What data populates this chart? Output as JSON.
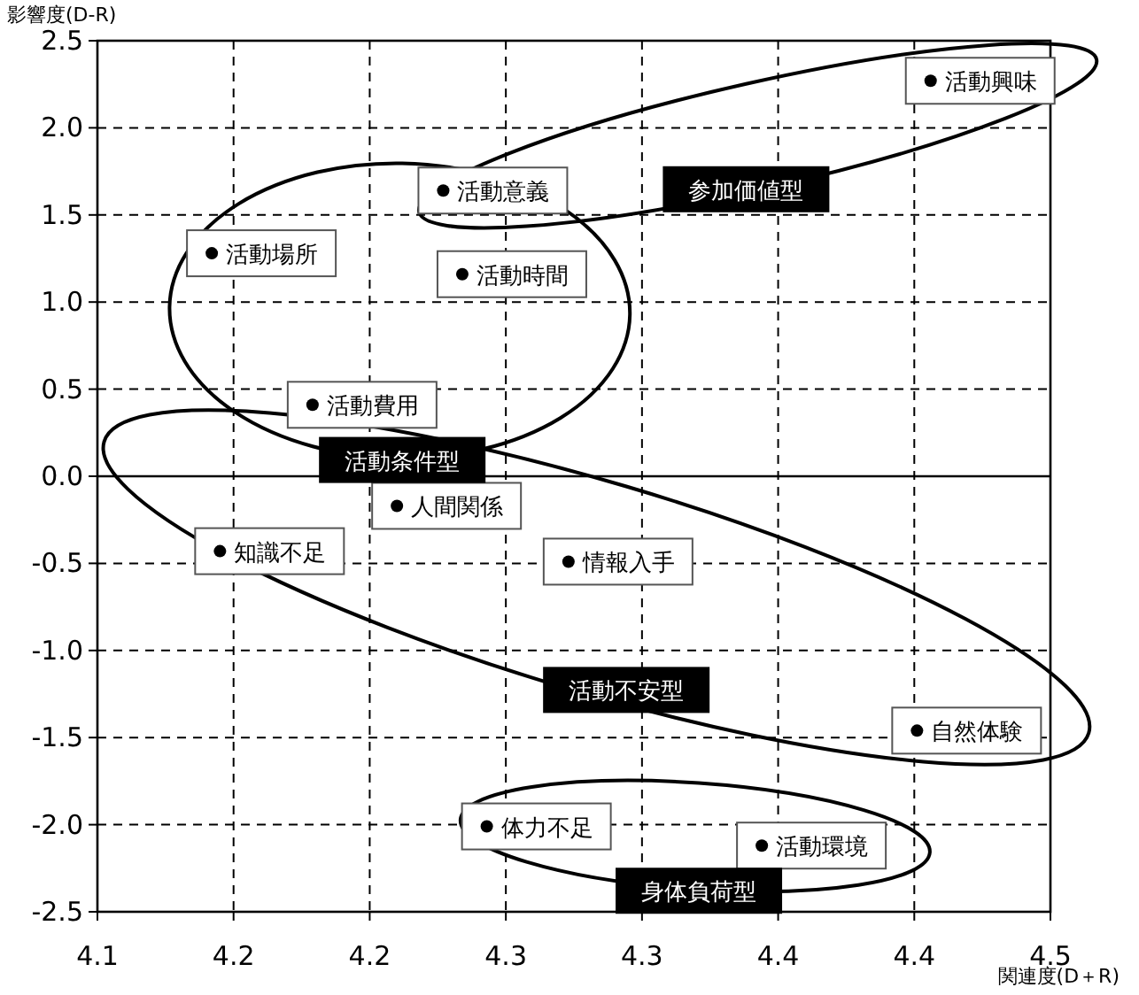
{
  "chart_data": {
    "type": "scatter",
    "xlabel": "関連度(D＋R)",
    "ylabel": "影響度(D-R)",
    "xlim": [
      4.1,
      4.45
    ],
    "ylim": [
      -2.5,
      2.5
    ],
    "xticks": [
      {
        "value": 4.1,
        "label": "4.1"
      },
      {
        "value": 4.15,
        "label": "4.2"
      },
      {
        "value": 4.2,
        "label": "4.2"
      },
      {
        "value": 4.25,
        "label": "4.3"
      },
      {
        "value": 4.3,
        "label": "4.3"
      },
      {
        "value": 4.35,
        "label": "4.4"
      },
      {
        "value": 4.4,
        "label": "4.4"
      },
      {
        "value": 4.45,
        "label": "4.5"
      }
    ],
    "yticks": [
      {
        "value": 2.5,
        "label": "2.5"
      },
      {
        "value": 2,
        "label": "2.0"
      },
      {
        "value": 1.5,
        "label": "1.5"
      },
      {
        "value": 1,
        "label": "1.0"
      },
      {
        "value": 0.5,
        "label": "0.5"
      },
      {
        "value": 0,
        "label": "0.0"
      },
      {
        "value": -0.5,
        "label": "-0.5"
      },
      {
        "value": -1,
        "label": "-1.0"
      },
      {
        "value": -1.5,
        "label": "-1.5"
      },
      {
        "value": -2,
        "label": "-2.0"
      },
      {
        "value": -2.5,
        "label": "-2.5"
      }
    ],
    "grid": true,
    "marker": "circle",
    "ref_lines": [
      {
        "axis": "y",
        "value": 0,
        "color": "#000000",
        "line_style": "solid"
      }
    ],
    "series": [
      {
        "name": "参加価値型",
        "color": "#000000",
        "x": [
          4.406,
          4.227
        ],
        "values": [
          2.27,
          1.64
        ],
        "value_labels": [
          "活動興味",
          "活動意義"
        ]
      },
      {
        "name": "活動条件型",
        "color": "#000000",
        "x": [
          4.142,
          4.234,
          4.179
        ],
        "values": [
          1.28,
          1.16,
          0.41
        ],
        "value_labels": [
          "活動場所",
          "活動時間",
          "活動費用"
        ]
      },
      {
        "name": "活動不安型",
        "color": "#000000",
        "x": [
          4.21,
          4.145,
          4.273,
          4.401
        ],
        "values": [
          -0.17,
          -0.43,
          -0.49,
          -1.46
        ],
        "value_labels": [
          "人間関係",
          "知識不足",
          "情報入手",
          "自然体験"
        ]
      },
      {
        "name": "身体負荷型",
        "color": "#000000",
        "x": [
          4.243,
          4.344
        ],
        "values": [
          -2.01,
          -2.12
        ],
        "value_labels": [
          "体力不足",
          "活動環境"
        ]
      }
    ]
  }
}
